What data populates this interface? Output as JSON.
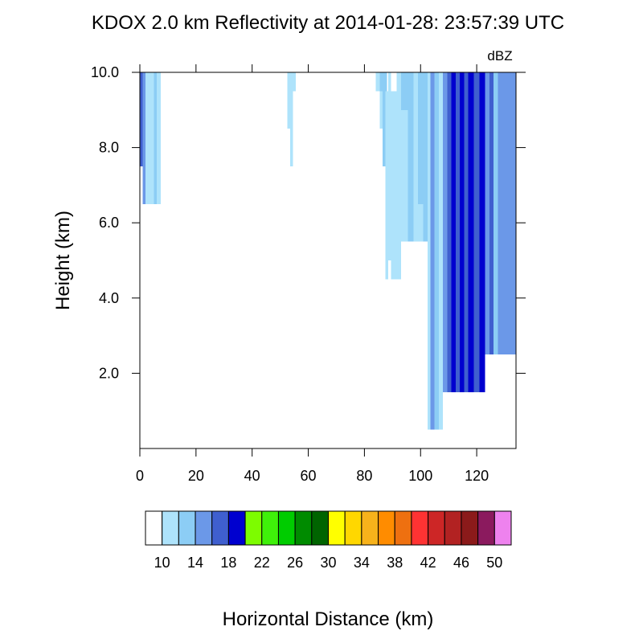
{
  "chart_data": {
    "type": "heatmap",
    "title": "KDOX 2.0 km Reflectivity at 2014-01-28: 23:57:39 UTC",
    "xlabel": "Horizontal Distance (km)",
    "ylabel": "Height (km)",
    "units_label": "dBZ",
    "xlim": [
      0,
      134
    ],
    "ylim": [
      0,
      10
    ],
    "x_ticks": [
      0,
      20,
      40,
      60,
      80,
      100,
      120
    ],
    "x_tick_labels": [
      "0",
      "20",
      "40",
      "60",
      "80",
      "100",
      "120"
    ],
    "y_ticks": [
      2,
      4,
      6,
      8,
      10
    ],
    "y_tick_labels": [
      "2.0",
      "4.0",
      "6.0",
      "8.0",
      "10.0"
    ],
    "colorbar": {
      "levels": [
        8,
        10,
        12,
        14,
        16,
        18,
        20,
        22,
        24,
        26,
        28,
        30,
        32,
        34,
        36,
        38,
        40,
        42,
        44,
        46,
        48,
        50,
        52
      ],
      "colors": [
        "#ffffff",
        "#aee3fb",
        "#8ccdf5",
        "#6b98e8",
        "#3f5fcf",
        "#0000cf",
        "#7dfc00",
        "#3ff00a",
        "#00cc00",
        "#008b00",
        "#006400",
        "#ffff00",
        "#ffd700",
        "#f7b21b",
        "#ff8c00",
        "#ee7010",
        "#ff3333",
        "#cd2626",
        "#b22222",
        "#8b1a1a",
        "#8b1a5e",
        "#ee82ee"
      ],
      "tick_values": [
        10,
        14,
        18,
        22,
        26,
        30,
        34,
        38,
        42,
        46,
        50
      ],
      "tick_labels": [
        "10",
        "14",
        "18",
        "22",
        "26",
        "30",
        "34",
        "38",
        "42",
        "46",
        "50"
      ]
    },
    "cells": [
      {
        "x0": 0,
        "x1": 1,
        "y0": 7.5,
        "y1": 10,
        "dbz": 17
      },
      {
        "x0": 1,
        "x1": 2,
        "y0": 6.5,
        "y1": 10,
        "dbz": 15
      },
      {
        "x0": 2,
        "x1": 5,
        "y0": 6.5,
        "y1": 10,
        "dbz": 11
      },
      {
        "x0": 5,
        "x1": 6,
        "y0": 6.5,
        "y1": 10,
        "dbz": 13
      },
      {
        "x0": 6,
        "x1": 7.5,
        "y0": 6.5,
        "y1": 10,
        "dbz": 11
      },
      {
        "x0": 52.5,
        "x1": 53.5,
        "y0": 8.5,
        "y1": 10,
        "dbz": 11
      },
      {
        "x0": 53.5,
        "x1": 54.5,
        "y0": 7.5,
        "y1": 10,
        "dbz": 11
      },
      {
        "x0": 54.5,
        "x1": 55.5,
        "y0": 9.5,
        "y1": 10,
        "dbz": 11
      },
      {
        "x0": 84,
        "x1": 85.5,
        "y0": 9.5,
        "y1": 10,
        "dbz": 11
      },
      {
        "x0": 85.5,
        "x1": 88,
        "y0": 9.5,
        "y1": 10,
        "dbz": 13
      },
      {
        "x0": 85.5,
        "x1": 86.5,
        "y0": 8.5,
        "y1": 9.5,
        "dbz": 11
      },
      {
        "x0": 86.5,
        "x1": 87.5,
        "y0": 7.5,
        "y1": 9.5,
        "dbz": 13
      },
      {
        "x0": 87.5,
        "x1": 88.5,
        "y0": 4.5,
        "y1": 9.5,
        "dbz": 11
      },
      {
        "x0": 88.5,
        "x1": 89.5,
        "y0": 5.0,
        "y1": 10,
        "dbz": 11
      },
      {
        "x0": 89.5,
        "x1": 91.5,
        "y0": 4.5,
        "y1": 9.5,
        "dbz": 11
      },
      {
        "x0": 91.5,
        "x1": 93,
        "y0": 4.5,
        "y1": 10,
        "dbz": 11
      },
      {
        "x0": 93,
        "x1": 95.5,
        "y0": 9.0,
        "y1": 10,
        "dbz": 13
      },
      {
        "x0": 93,
        "x1": 95.5,
        "y0": 5.5,
        "y1": 9.0,
        "dbz": 11
      },
      {
        "x0": 95.5,
        "x1": 97.5,
        "y0": 5.5,
        "y1": 10,
        "dbz": 13
      },
      {
        "x0": 97.5,
        "x1": 99,
        "y0": 5.5,
        "y1": 10,
        "dbz": 11
      },
      {
        "x0": 99,
        "x1": 101,
        "y0": 6.5,
        "y1": 10,
        "dbz": 13
      },
      {
        "x0": 99,
        "x1": 101,
        "y0": 5.5,
        "y1": 6.5,
        "dbz": 11
      },
      {
        "x0": 101,
        "x1": 102.5,
        "y0": 5.5,
        "y1": 10,
        "dbz": 13
      },
      {
        "x0": 102.5,
        "x1": 103.5,
        "y0": 0.5,
        "y1": 10,
        "dbz": 11
      },
      {
        "x0": 103.5,
        "x1": 105,
        "y0": 0.5,
        "y1": 10,
        "dbz": 15
      },
      {
        "x0": 105,
        "x1": 106.5,
        "y0": 0.5,
        "y1": 10,
        "dbz": 13
      },
      {
        "x0": 106.5,
        "x1": 108,
        "y0": 0.5,
        "y1": 10,
        "dbz": 11
      },
      {
        "x0": 108,
        "x1": 109.5,
        "y0": 1.5,
        "y1": 10,
        "dbz": 15
      },
      {
        "x0": 109.5,
        "x1": 111,
        "y0": 1.5,
        "y1": 10,
        "dbz": 17
      },
      {
        "x0": 111,
        "x1": 112.5,
        "y0": 1.5,
        "y1": 10,
        "dbz": 19
      },
      {
        "x0": 112.5,
        "x1": 114,
        "y0": 1.5,
        "y1": 10,
        "dbz": 17
      },
      {
        "x0": 114,
        "x1": 115.5,
        "y0": 1.5,
        "y1": 10,
        "dbz": 19
      },
      {
        "x0": 115.5,
        "x1": 117,
        "y0": 1.5,
        "y1": 10,
        "dbz": 17
      },
      {
        "x0": 117,
        "x1": 119,
        "y0": 1.5,
        "y1": 10,
        "dbz": 19
      },
      {
        "x0": 119,
        "x1": 121,
        "y0": 1.5,
        "y1": 10,
        "dbz": 17
      },
      {
        "x0": 121,
        "x1": 123,
        "y0": 1.5,
        "y1": 10,
        "dbz": 19
      },
      {
        "x0": 123,
        "x1": 124.5,
        "y0": 2.5,
        "y1": 10,
        "dbz": 15
      },
      {
        "x0": 124.5,
        "x1": 126,
        "y0": 2.5,
        "y1": 10,
        "dbz": 17
      },
      {
        "x0": 126,
        "x1": 127.5,
        "y0": 2.5,
        "y1": 10,
        "dbz": 13
      },
      {
        "x0": 127.5,
        "x1": 134,
        "y0": 2.5,
        "y1": 10,
        "dbz": 15
      }
    ]
  }
}
